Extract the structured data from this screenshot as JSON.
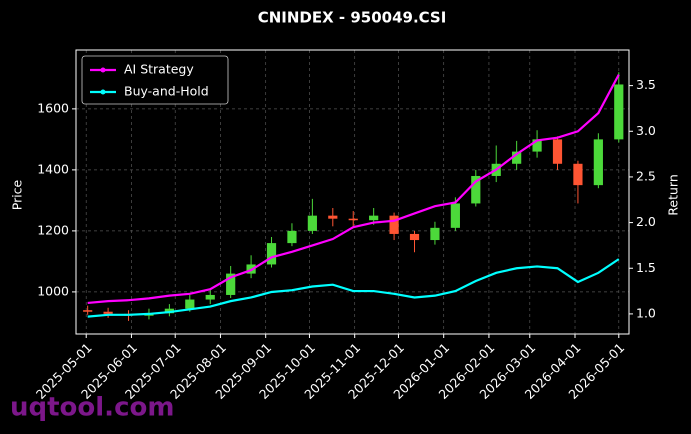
{
  "chart_data": {
    "type": "candlestick",
    "title": "CNINDEX - 950049.CSI",
    "ylabel": "Price",
    "y2label": "Return",
    "watermark": "uqtool.com",
    "x": [
      "2025-05-02",
      "2025-05-16",
      "2025-05-30",
      "2025-06-13",
      "2025-06-27",
      "2025-07-11",
      "2025-07-25",
      "2025-08-08",
      "2025-08-22",
      "2025-09-05",
      "2025-09-19",
      "2025-10-03",
      "2025-10-17",
      "2025-10-31",
      "2025-11-14",
      "2025-11-28",
      "2025-12-12",
      "2025-12-26",
      "2026-01-09",
      "2026-01-23",
      "2026-02-06",
      "2026-02-20",
      "2026-03-06",
      "2026-03-20",
      "2026-04-03",
      "2026-04-17",
      "2026-05-01"
    ],
    "open": [
      940,
      935,
      928,
      922,
      930,
      945,
      975,
      990,
      1060,
      1090,
      1160,
      1200,
      1250,
      1240,
      1235,
      1250,
      1190,
      1170,
      1210,
      1290,
      1380,
      1420,
      1460,
      1500,
      1420,
      1350,
      1500
    ],
    "high": [
      955,
      948,
      940,
      945,
      960,
      990,
      1010,
      1085,
      1120,
      1180,
      1225,
      1305,
      1275,
      1265,
      1275,
      1260,
      1200,
      1230,
      1310,
      1400,
      1480,
      1495,
      1530,
      1510,
      1430,
      1520,
      1720
    ],
    "low": [
      925,
      915,
      905,
      910,
      920,
      935,
      960,
      980,
      1045,
      1080,
      1150,
      1190,
      1215,
      1215,
      1220,
      1170,
      1130,
      1155,
      1200,
      1280,
      1360,
      1400,
      1440,
      1400,
      1290,
      1340,
      1490
    ],
    "close": [
      935,
      928,
      922,
      930,
      945,
      975,
      990,
      1060,
      1090,
      1160,
      1200,
      1250,
      1240,
      1235,
      1250,
      1190,
      1170,
      1210,
      1290,
      1380,
      1420,
      1460,
      1500,
      1420,
      1350,
      1500,
      1680
    ],
    "up_color": "#4cd93a",
    "down_color": "#ff5533",
    "series": [
      {
        "name": "AI Strategy",
        "color": "#ff00ff",
        "axis": "y2",
        "values": [
          1.12,
          1.14,
          1.15,
          1.17,
          1.2,
          1.22,
          1.27,
          1.4,
          1.48,
          1.62,
          1.68,
          1.75,
          1.82,
          1.95,
          2.0,
          2.02,
          2.1,
          2.18,
          2.22,
          2.45,
          2.58,
          2.75,
          2.9,
          2.93,
          3.0,
          3.2,
          3.62
        ]
      },
      {
        "name": "Buy-and-Hold",
        "color": "#00ffff",
        "axis": "y2",
        "values": [
          0.97,
          0.99,
          0.99,
          1.0,
          1.02,
          1.05,
          1.08,
          1.14,
          1.18,
          1.24,
          1.26,
          1.3,
          1.32,
          1.25,
          1.25,
          1.22,
          1.18,
          1.2,
          1.25,
          1.36,
          1.45,
          1.5,
          1.52,
          1.5,
          1.35,
          1.45,
          1.6
        ]
      }
    ],
    "xlim": [
      "2025-04-24",
      "2026-05-08"
    ],
    "xticks": [
      "2025-05-01",
      "2025-06-01",
      "2025-07-01",
      "2025-08-01",
      "2025-09-01",
      "2025-10-01",
      "2025-11-01",
      "2025-12-01",
      "2026-01-01",
      "2026-02-01",
      "2026-03-01",
      "2026-04-01",
      "2026-05-01"
    ],
    "ylim": [
      862,
      1793
    ],
    "yticks": [
      1000,
      1200,
      1400,
      1600
    ],
    "y2lim": [
      0.78,
      3.89
    ],
    "y2ticks": [
      {
        "value": 1.0,
        "label": "1.0"
      },
      1.5,
      {
        "value": 2.0,
        "label": "2.0"
      },
      2.5,
      {
        "value": 3.0,
        "label": "3.0"
      },
      3.5
    ],
    "grid": true,
    "legend": "upper left"
  }
}
